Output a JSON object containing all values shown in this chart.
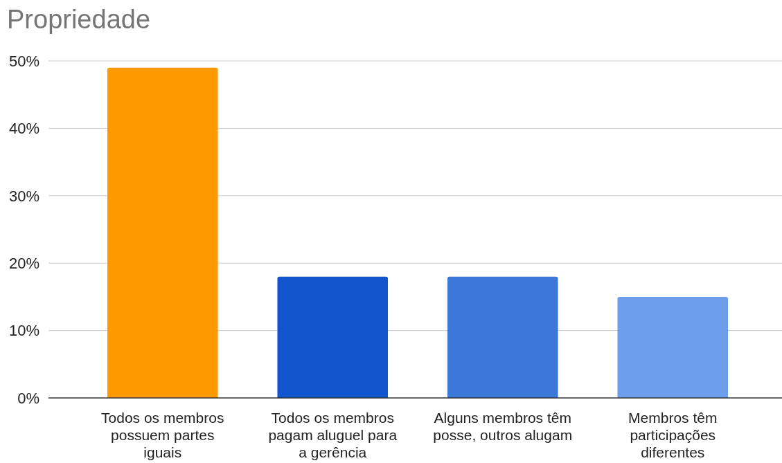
{
  "chart_data": {
    "type": "bar",
    "title": "Propriedade",
    "categories": [
      "Todos os membros\npossuem partes\niguais",
      "Todos os membros\npagam aluguel para\na gerência",
      "Alguns membros têm\nposse, outros alugam",
      "Membros têm\nparticipações\ndiferentes"
    ],
    "values": [
      49,
      18,
      18,
      15
    ],
    "colors": [
      "#ff9900",
      "#1155cc",
      "#3c78d8",
      "#6d9eeb"
    ],
    "ylim": [
      0,
      50
    ],
    "yticks": [
      {
        "value": 0,
        "label": "0%"
      },
      {
        "value": 10,
        "label": "10%"
      },
      {
        "value": 20,
        "label": "20%"
      },
      {
        "value": 30,
        "label": "30%"
      },
      {
        "value": 40,
        "label": "40%"
      },
      {
        "value": 50,
        "label": "50%"
      }
    ],
    "grid": "y"
  }
}
